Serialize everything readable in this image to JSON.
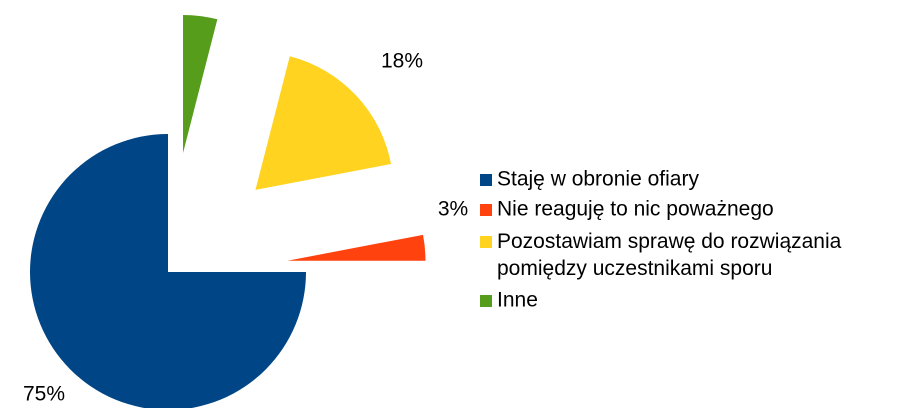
{
  "chart_data": {
    "type": "pie",
    "categories": [
      "Staję w obronie ofiary",
      "Nie reaguję to nic poważnego",
      "Pozostawiam sprawę do rozwiązania pomiędzy uczestnikami sporu",
      "Inne"
    ],
    "values": [
      75,
      3,
      18,
      4
    ],
    "value_labels": [
      "75%",
      "3%",
      "18%",
      null
    ],
    "colors": [
      "#004586",
      "#ff420e",
      "#ffd320",
      "#579d1c"
    ],
    "exploded": [
      false,
      true,
      true,
      true
    ],
    "legend": "right"
  }
}
